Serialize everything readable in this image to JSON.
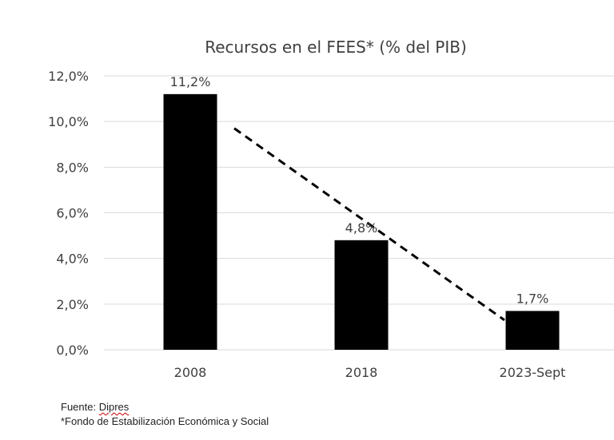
{
  "chart_data": {
    "type": "bar",
    "title": "Recursos en el FEES* (% del PIB)",
    "categories": [
      "2008",
      "2018",
      "2023-Sept"
    ],
    "values": [
      11.2,
      4.8,
      1.7
    ],
    "data_labels": [
      "11,2%",
      "4,8%",
      "1,7%"
    ],
    "ylim": [
      0,
      12
    ],
    "y_ticks": [
      {
        "value": 0,
        "label": "0,0%"
      },
      {
        "value": 2,
        "label": "2,0%"
      },
      {
        "value": 4,
        "label": "4,0%"
      },
      {
        "value": 6,
        "label": "6,0%"
      },
      {
        "value": 8,
        "label": "8,0%"
      },
      {
        "value": 10,
        "label": "10,0%"
      },
      {
        "value": 12,
        "label": "12,0%"
      }
    ],
    "trendline": {
      "style": "dashed",
      "from": {
        "x": "2008",
        "y": 9.7
      },
      "to": {
        "x": "2023-Sept",
        "y": 1.3
      }
    },
    "grid": true,
    "bar_color": "#000000",
    "gridline_color": "#d9d9d9"
  },
  "footer": {
    "source_prefix": "Fuente: ",
    "source_name": "Dipres",
    "note": "*Fondo de Estabilización Económica y Social"
  }
}
